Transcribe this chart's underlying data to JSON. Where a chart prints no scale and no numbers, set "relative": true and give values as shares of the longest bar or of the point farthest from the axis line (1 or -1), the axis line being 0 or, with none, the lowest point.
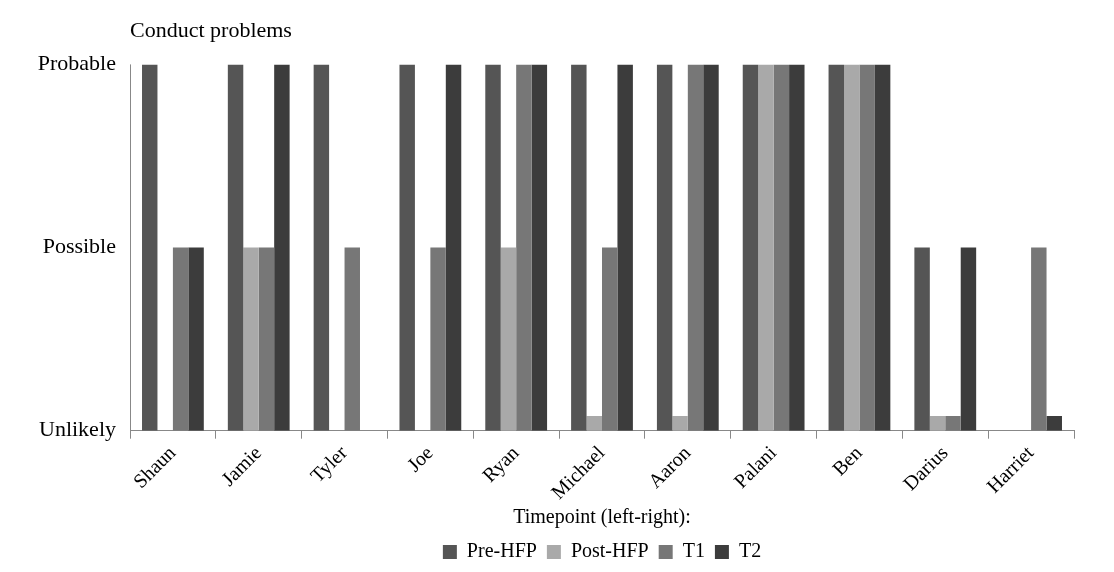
{
  "chart_data": {
    "type": "bar",
    "title": "Conduct problems",
    "relative": true,
    "categories": [
      "Shaun",
      "Jamie",
      "Tyler",
      "Joe",
      "Ryan",
      "Michael",
      "Aaron",
      "Palani",
      "Ben",
      "Darius",
      "Harriet"
    ],
    "series": [
      {
        "name": "Pre-HFP",
        "color": "#555555",
        "values": [
          1,
          1,
          1,
          1,
          1,
          1,
          1,
          1,
          1,
          0.5,
          null
        ]
      },
      {
        "name": "Post-HFP",
        "color": "#a9a9a9",
        "values": [
          null,
          0.5,
          null,
          null,
          0.5,
          0.04,
          0.04,
          1,
          1,
          0.04,
          null
        ]
      },
      {
        "name": "T1",
        "color": "#777777",
        "values": [
          0.5,
          0.5,
          0.5,
          0.5,
          1,
          0.5,
          1,
          1,
          1,
          0.04,
          0.5
        ]
      },
      {
        "name": "T2",
        "color": "#3c3c3c",
        "values": [
          0.5,
          1,
          null,
          1,
          1,
          1,
          1,
          1,
          1,
          0.5,
          0.04
        ]
      }
    ],
    "annotations": [
      "Probable",
      "Possible",
      "Unlikely"
    ],
    "grid": false,
    "legend": "bottom",
    "legend_title": "Timepoint (left-right):"
  }
}
